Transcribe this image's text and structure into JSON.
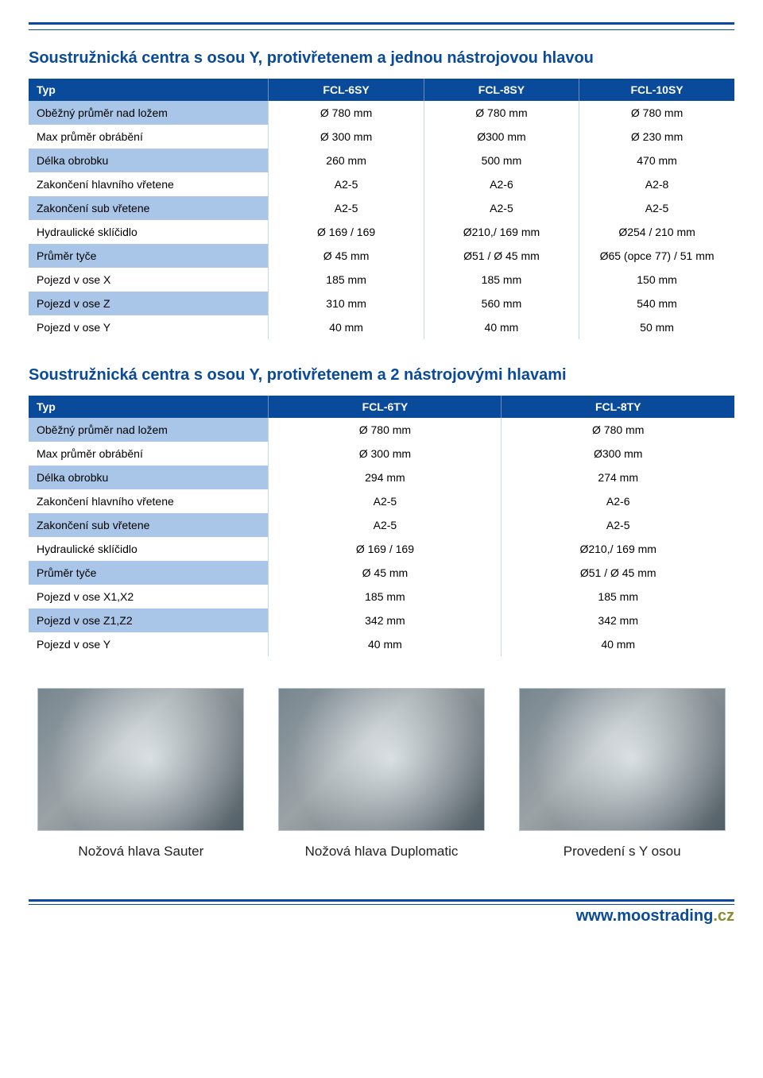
{
  "colors": {
    "accent": "#0a4a9a",
    "header_bg": "#0a4a9a",
    "header_text": "#ffffff",
    "row_label_alt_bg": "#a9c5e8",
    "border": "#c7d5ea"
  },
  "table1": {
    "title": "Soustružnická centra s osou Y, protivřetenem a jednou nástrojovou hlavou",
    "columns": [
      "Typ",
      "FCL-6SY",
      "FCL-8SY",
      "FCL-10SY"
    ],
    "rows": [
      {
        "label": "Oběžný průměr nad ložem",
        "vals": [
          "Ø 780 mm",
          "Ø 780 mm",
          "Ø 780 mm"
        ]
      },
      {
        "label": "Max průměr obrábění",
        "vals": [
          "Ø 300 mm",
          "Ø300 mm",
          "Ø 230 mm"
        ]
      },
      {
        "label": "Délka obrobku",
        "vals": [
          "260 mm",
          "500 mm",
          "470 mm"
        ]
      },
      {
        "label": "Zakončení hlavního vřetene",
        "vals": [
          "A2-5",
          "A2-6",
          "A2-8"
        ]
      },
      {
        "label": "Zakončení sub vřetene",
        "vals": [
          "A2-5",
          "A2-5",
          "A2-5"
        ]
      },
      {
        "label": "Hydraulické sklíčidlo",
        "vals": [
          "Ø 169 / 169",
          "Ø210,/ 169 mm",
          "Ø254 / 210 mm"
        ]
      },
      {
        "label": "Průměr tyče",
        "vals": [
          "Ø 45 mm",
          "Ø51 /  Ø 45 mm",
          "Ø65 (opce 77) / 51 mm"
        ]
      },
      {
        "label": "Pojezd v ose X",
        "vals": [
          "185 mm",
          "185 mm",
          "150 mm"
        ]
      },
      {
        "label": "Pojezd v ose Z",
        "vals": [
          "310 mm",
          "560 mm",
          "540 mm"
        ]
      },
      {
        "label": "Pojezd v ose Y",
        "vals": [
          "40 mm",
          "40 mm",
          "50 mm"
        ]
      }
    ]
  },
  "table2": {
    "title": "Soustružnická centra s osou Y, protivřetenem a 2 nástrojovými hlavami",
    "columns": [
      "Typ",
      "FCL-6TY",
      "FCL-8TY"
    ],
    "rows": [
      {
        "label": "Oběžný průměr nad ložem",
        "vals": [
          "Ø 780 mm",
          "Ø 780 mm"
        ]
      },
      {
        "label": "Max průměr obrábění",
        "vals": [
          "Ø 300 mm",
          "Ø300 mm"
        ]
      },
      {
        "label": "Délka obrobku",
        "vals": [
          "294 mm",
          "274 mm"
        ]
      },
      {
        "label": "Zakončení hlavního vřetene",
        "vals": [
          "A2-5",
          "A2-6"
        ]
      },
      {
        "label": "Zakončení sub vřetene",
        "vals": [
          "A2-5",
          "A2-5"
        ]
      },
      {
        "label": "Hydraulické sklíčidlo",
        "vals": [
          "Ø 169 / 169",
          "Ø210,/ 169 mm"
        ]
      },
      {
        "label": "Průměr tyče",
        "vals": [
          "Ø 45 mm",
          "Ø51 /  Ø 45 mm"
        ]
      },
      {
        "label": "Pojezd v ose X1,X2",
        "vals": [
          "185 mm",
          "185 mm"
        ]
      },
      {
        "label": "Pojezd v ose Z1,Z2",
        "vals": [
          "342 mm",
          "342 mm"
        ]
      },
      {
        "label": "Pojezd v ose Y",
        "vals": [
          "40 mm",
          "40 mm"
        ]
      }
    ]
  },
  "figures": [
    {
      "caption": "Nožová hlava Sauter"
    },
    {
      "caption": "Nožová hlava Duplomatic"
    },
    {
      "caption": "Provedení s Y osou"
    }
  ],
  "footer": {
    "prefix": "www.",
    "domain": "moostrading",
    "suffix": ".cz"
  }
}
